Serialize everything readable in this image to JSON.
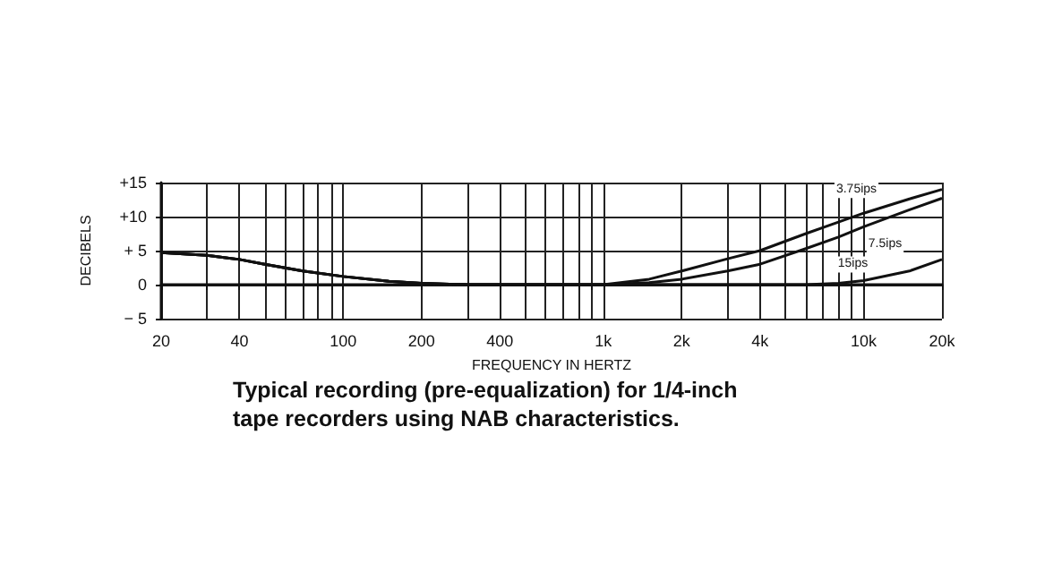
{
  "chart_data": {
    "type": "line",
    "xlabel": "FREQUENCY IN HERTZ",
    "ylabel": "DECIBELS",
    "annotations": [
      "Typical recording (pre-equalization) for 1/4-inch tape recorders using NAB characteristics."
    ],
    "log": "x",
    "grid": true,
    "marker": "none",
    "line_style": "solid",
    "legend": false,
    "xlim": [
      20,
      20000
    ],
    "ylim": [
      -5,
      15
    ],
    "xticks": [
      20,
      {
        "value": 30,
        "label": null
      },
      40,
      {
        "value": 50,
        "label": null
      },
      {
        "value": 60,
        "label": null
      },
      {
        "value": 70,
        "label": null
      },
      {
        "value": 80,
        "label": null
      },
      {
        "value": 90,
        "label": null
      },
      100,
      200,
      {
        "value": 300,
        "label": null
      },
      400,
      {
        "value": 500,
        "label": null
      },
      {
        "value": 600,
        "label": null
      },
      {
        "value": 700,
        "label": null
      },
      {
        "value": 800,
        "label": null
      },
      {
        "value": 900,
        "label": null
      },
      {
        "value": 1000,
        "label": "1k"
      },
      {
        "value": 2000,
        "label": "2k"
      },
      {
        "value": 3000,
        "label": null
      },
      {
        "value": 4000,
        "label": "4k"
      },
      {
        "value": 5000,
        "label": null
      },
      {
        "value": 6000,
        "label": null
      },
      {
        "value": 7000,
        "label": null
      },
      {
        "value": 8000,
        "label": null
      },
      {
        "value": 9000,
        "label": null
      },
      {
        "value": 10000,
        "label": "10k"
      },
      {
        "value": 20000,
        "label": "20k"
      }
    ],
    "yticks": [
      {
        "value": -5,
        "label": "− 5"
      },
      0,
      {
        "value": 5,
        "label": "+ 5"
      },
      {
        "value": 10,
        "label": "+10"
      },
      {
        "value": 15,
        "label": "+15"
      }
    ],
    "series": [
      {
        "name": "3.75ips",
        "color": "#111111",
        "x": [
          20,
          30,
          40,
          50,
          70,
          100,
          150,
          200,
          300,
          500,
          1000,
          1500,
          2000,
          3000,
          4000,
          6000,
          8000,
          10000,
          15000,
          20000
        ],
        "values": [
          4.7,
          4.3,
          3.7,
          3.0,
          2.0,
          1.2,
          0.5,
          0.2,
          0,
          0,
          0,
          0.8,
          2,
          3.8,
          5,
          7.5,
          9.2,
          10.5,
          12.6,
          14
        ]
      },
      {
        "name": "7.5ips",
        "color": "#111111",
        "x": [
          20,
          30,
          40,
          50,
          70,
          100,
          150,
          200,
          300,
          500,
          1000,
          1500,
          2000,
          3000,
          4000,
          6000,
          8000,
          10000,
          15000,
          20000
        ],
        "values": [
          4.7,
          4.3,
          3.7,
          3.0,
          2.0,
          1.2,
          0.5,
          0.2,
          0,
          0,
          0,
          0.3,
          0.8,
          2,
          3,
          5.3,
          7,
          8.5,
          11,
          12.7
        ]
      },
      {
        "name": "15ips",
        "color": "#111111",
        "x": [
          20,
          30,
          40,
          50,
          70,
          100,
          150,
          200,
          300,
          500,
          1000,
          2000,
          4000,
          6000,
          8000,
          10000,
          15000,
          20000
        ],
        "values": [
          4.7,
          4.3,
          3.7,
          3.0,
          2.0,
          1.2,
          0.5,
          0.2,
          0,
          0,
          0,
          0,
          0,
          0,
          0.2,
          0.6,
          2,
          3.7
        ]
      }
    ]
  }
}
